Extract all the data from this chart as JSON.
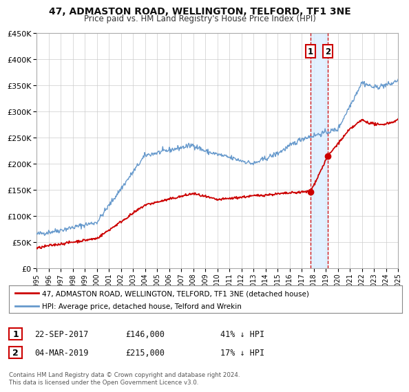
{
  "title": "47, ADMASTON ROAD, WELLINGTON, TELFORD, TF1 3NE",
  "subtitle": "Price paid vs. HM Land Registry's House Price Index (HPI)",
  "bg_color": "#ffffff",
  "plot_bg_color": "#ffffff",
  "grid_color": "#cccccc",
  "xlim": [
    1995,
    2025
  ],
  "ylim": [
    0,
    450000
  ],
  "yticks": [
    0,
    50000,
    100000,
    150000,
    200000,
    250000,
    300000,
    350000,
    400000,
    450000
  ],
  "xticks": [
    1995,
    1996,
    1997,
    1998,
    1999,
    2000,
    2001,
    2002,
    2003,
    2004,
    2005,
    2006,
    2007,
    2008,
    2009,
    2010,
    2011,
    2012,
    2013,
    2014,
    2015,
    2016,
    2017,
    2018,
    2019,
    2020,
    2021,
    2022,
    2023,
    2024,
    2025
  ],
  "red_color": "#cc0000",
  "blue_color": "#6699cc",
  "vline1_x": 2017.73,
  "vline2_x": 2019.17,
  "vline_color": "#cc0000",
  "shade_color": "#ddeeff",
  "dot1_x": 2017.73,
  "dot1_y": 146000,
  "dot2_x": 2019.17,
  "dot2_y": 215000,
  "legend_label_red": "47, ADMASTON ROAD, WELLINGTON, TELFORD, TF1 3NE (detached house)",
  "legend_label_blue": "HPI: Average price, detached house, Telford and Wrekin",
  "entry1_date": "22-SEP-2017",
  "entry1_price": "£146,000",
  "entry1_hpi": "41% ↓ HPI",
  "entry2_date": "04-MAR-2019",
  "entry2_price": "£215,000",
  "entry2_hpi": "17% ↓ HPI",
  "footer": "Contains HM Land Registry data © Crown copyright and database right 2024.\nThis data is licensed under the Open Government Licence v3.0."
}
